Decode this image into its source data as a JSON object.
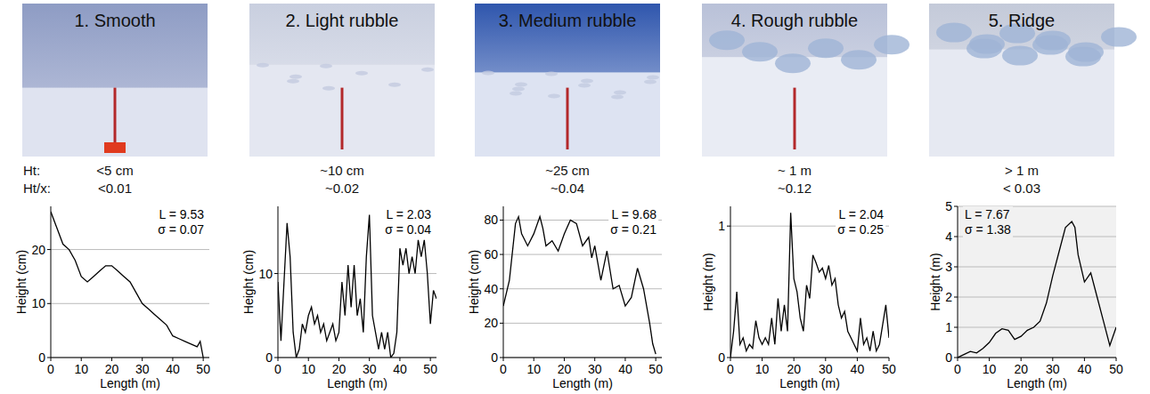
{
  "row_labels": [
    "Ht:",
    "Ht/x:"
  ],
  "chart_data": [
    {
      "type": "line",
      "title": "1. Smooth",
      "measures": [
        "<5 cm",
        "<0.01"
      ],
      "annotations": [
        "L = 9.53",
        "σ = 0.07"
      ],
      "x_label": "Length (m)",
      "y_label": "Height (cm)",
      "color": "#000000",
      "grid": true,
      "xlim": [
        0,
        52
      ],
      "xticks": [
        0,
        10,
        20,
        30,
        40,
        50
      ],
      "ylim": [
        0,
        28
      ],
      "yticks": [
        0,
        10,
        20
      ],
      "x": [
        0,
        2,
        4,
        6,
        8,
        10,
        12,
        14,
        16,
        18,
        20,
        22,
        24,
        26,
        28,
        30,
        32,
        34,
        36,
        38,
        40,
        42,
        44,
        46,
        48,
        49,
        50
      ],
      "values": [
        27,
        24,
        21,
        20,
        18,
        15,
        14,
        15,
        16,
        17,
        17,
        16,
        15,
        14,
        12,
        10,
        9,
        8,
        7,
        6,
        4,
        3.5,
        3,
        2.5,
        2,
        3,
        0
      ]
    },
    {
      "type": "line",
      "title": "2. Light rubble",
      "measures": [
        "~10 cm",
        "~0.02"
      ],
      "annotations": [
        "L = 2.03",
        "σ = 0.04"
      ],
      "x_label": "Length (m)",
      "y_label": "Height (cm)",
      "color": "#000000",
      "grid": true,
      "xlim": [
        0,
        52
      ],
      "xticks": [
        0,
        10,
        20,
        30,
        40,
        50
      ],
      "ylim": [
        0,
        18
      ],
      "yticks": [
        0,
        10
      ],
      "x": [
        0,
        1,
        3,
        4,
        5,
        6,
        7,
        8,
        9,
        10,
        11,
        12,
        13,
        14,
        15,
        16,
        17,
        18,
        19,
        20,
        21,
        22,
        23,
        24,
        25,
        26,
        27,
        28,
        29,
        30,
        31,
        32,
        33,
        34,
        35,
        36,
        37,
        38,
        39,
        40,
        41,
        42,
        43,
        44,
        45,
        46,
        47,
        48,
        49,
        50,
        51,
        52
      ],
      "values": [
        9,
        2,
        16,
        12,
        3,
        0,
        1,
        4,
        3,
        5,
        6,
        4,
        5,
        3,
        4,
        2,
        3,
        4,
        2,
        3,
        9,
        5,
        11,
        6,
        11,
        5,
        7,
        3,
        12,
        17,
        5,
        3,
        1,
        3,
        1,
        3,
        0,
        0.5,
        3,
        13,
        11,
        13,
        10,
        12,
        10,
        14,
        12,
        14,
        10,
        4,
        8,
        7
      ]
    },
    {
      "type": "line",
      "title": "3. Medium rubble",
      "measures": [
        "~25 cm",
        "~0.04"
      ],
      "annotations": [
        "L = 9.68",
        "σ = 0.21"
      ],
      "x_label": "Length (m)",
      "y_label": "Height (cm)",
      "color": "#000000",
      "grid": true,
      "xlim": [
        0,
        52
      ],
      "xticks": [
        0,
        10,
        20,
        30,
        40,
        50
      ],
      "ylim": [
        0,
        88
      ],
      "yticks": [
        0,
        20,
        40,
        60,
        80
      ],
      "x": [
        0,
        2,
        4,
        5,
        6,
        8,
        10,
        12,
        13,
        14,
        16,
        18,
        20,
        22,
        24,
        26,
        28,
        29,
        30,
        32,
        34,
        36,
        38,
        40,
        42,
        44,
        46,
        48,
        49,
        50
      ],
      "values": [
        30,
        45,
        78,
        82,
        72,
        65,
        72,
        82,
        75,
        65,
        68,
        62,
        72,
        80,
        78,
        65,
        70,
        58,
        65,
        45,
        62,
        40,
        42,
        30,
        35,
        52,
        40,
        20,
        8,
        2
      ]
    },
    {
      "type": "line",
      "title": "4. Rough rubble",
      "measures": [
        "~ 1 m",
        "~0.12"
      ],
      "annotations": [
        "L = 2.04",
        "σ = 0.25"
      ],
      "x_label": "Length (m)",
      "y_label": "Height (m)",
      "color": "#000000",
      "grid": true,
      "xlim": [
        0,
        50
      ],
      "xticks": [
        0,
        10,
        20,
        30,
        40,
        50
      ],
      "ylim": [
        0,
        1.15
      ],
      "yticks": [
        0,
        1
      ],
      "x": [
        0,
        1,
        2,
        3,
        4,
        5,
        6,
        7,
        8,
        9,
        10,
        11,
        12,
        13,
        14,
        15,
        16,
        17,
        18,
        19,
        20,
        21,
        22,
        23,
        24,
        25,
        26,
        27,
        28,
        29,
        30,
        31,
        32,
        33,
        34,
        35,
        36,
        37,
        38,
        39,
        40,
        41,
        42,
        43,
        44,
        45,
        46,
        47,
        48,
        49,
        50
      ],
      "values": [
        0,
        0.2,
        0.5,
        0.1,
        0.15,
        0.05,
        0.1,
        0.07,
        0.28,
        0.15,
        0.1,
        0.15,
        0.1,
        0.3,
        0.1,
        0.45,
        0.2,
        0.4,
        0.2,
        1.1,
        0.6,
        0.5,
        0.3,
        0.2,
        0.55,
        0.45,
        0.78,
        0.72,
        0.65,
        0.68,
        0.6,
        0.7,
        0.55,
        0.6,
        0.4,
        0.3,
        0.35,
        0.2,
        0.15,
        0.1,
        0.05,
        0.3,
        0.1,
        0.15,
        0.05,
        0.2,
        0.05,
        0.1,
        0.25,
        0.4,
        0.15
      ]
    },
    {
      "type": "line",
      "title": "5. Ridge",
      "measures": [
        "> 1 m",
        "< 0.03"
      ],
      "annotations": [
        "L = 7.67",
        "σ = 1.38"
      ],
      "x_label": "Length (m)",
      "y_label": "Height (m)",
      "color": "#000000",
      "grid": true,
      "xlim": [
        0,
        50
      ],
      "xticks": [
        0,
        10,
        20,
        30,
        40,
        50
      ],
      "ylim": [
        0,
        5
      ],
      "yticks": [
        0,
        1,
        2,
        3,
        4,
        5
      ],
      "x": [
        0,
        2,
        4,
        6,
        8,
        10,
        12,
        14,
        16,
        18,
        20,
        22,
        24,
        26,
        28,
        30,
        32,
        34,
        36,
        37,
        38,
        40,
        42,
        44,
        46,
        48,
        50
      ],
      "values": [
        0,
        0.1,
        0.2,
        0.15,
        0.3,
        0.5,
        0.8,
        0.95,
        0.9,
        0.6,
        0.7,
        0.9,
        1.0,
        1.2,
        1.8,
        2.7,
        3.5,
        4.3,
        4.5,
        4.3,
        3.4,
        2.5,
        2.8,
        2.0,
        1.2,
        0.4,
        1.0
      ]
    }
  ]
}
